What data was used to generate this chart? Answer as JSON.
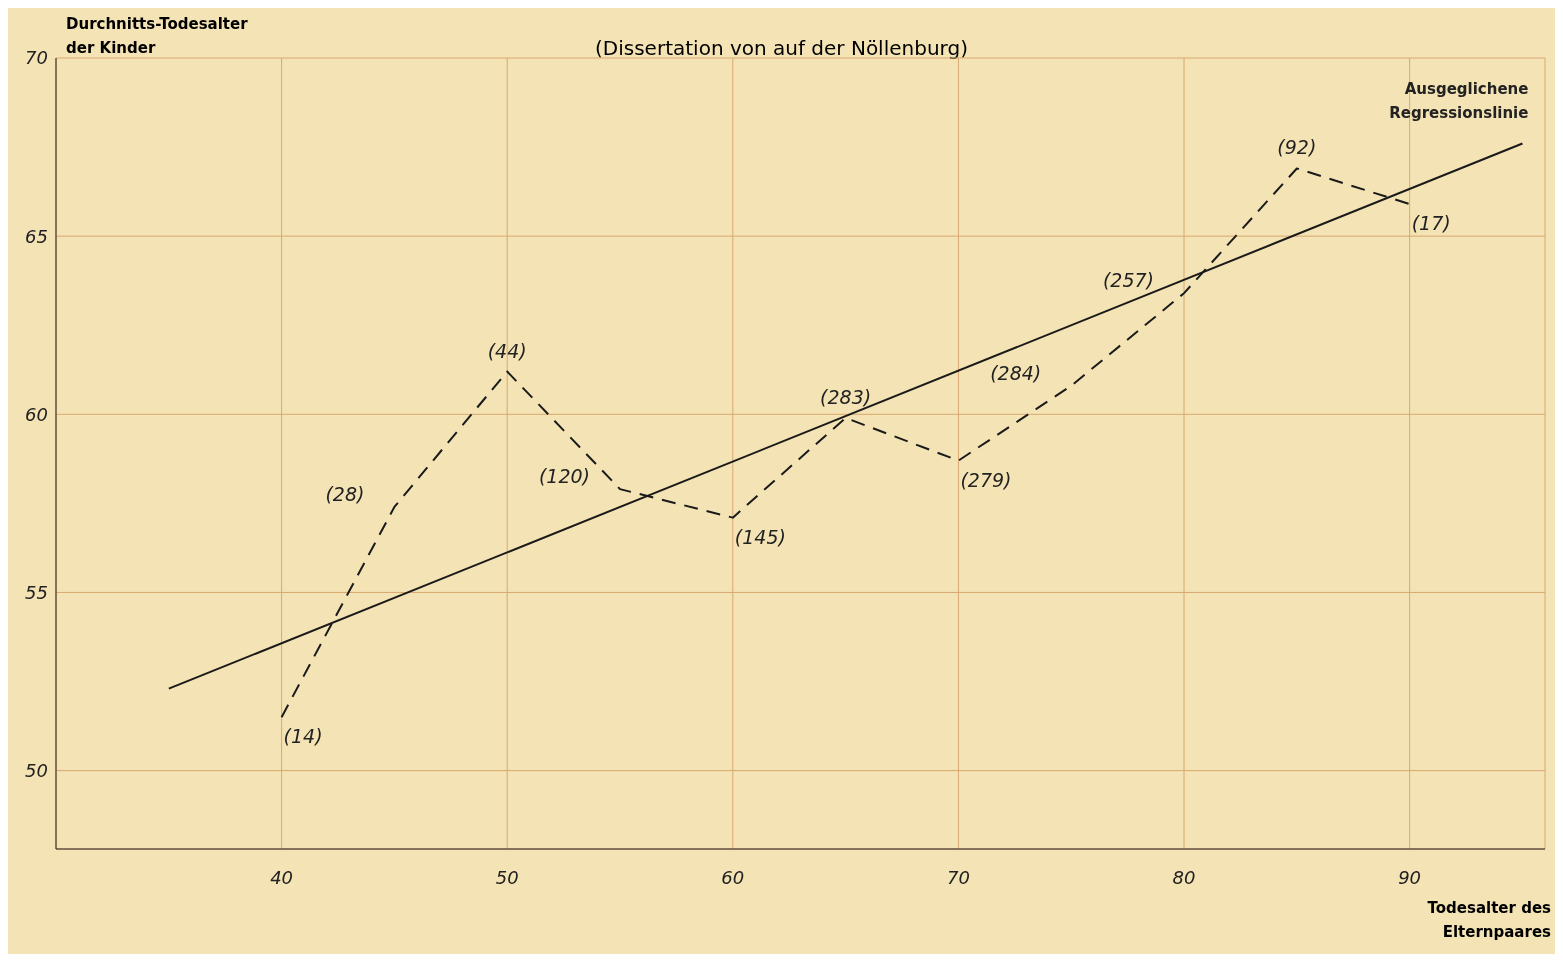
{
  "chart_data": {
    "type": "line",
    "subtitle": "(Dissertation von auf der Nöllenburg)",
    "xlabel": "Todesalter des Elternpaares",
    "ylabel": "Durchnitts-Todesalter der Kinder",
    "xlim": [
      30,
      96
    ],
    "ylim": [
      47.8,
      70
    ],
    "xticks": [
      40,
      50,
      60,
      70,
      80,
      90
    ],
    "yticks": [
      50,
      55,
      60,
      65,
      70
    ],
    "grid": true,
    "marker": "none",
    "series": [
      {
        "color": "#1a1a1a",
        "line_style": "dashed",
        "x": [
          40,
          45,
          50,
          55,
          60,
          65,
          70,
          75,
          80,
          85,
          90
        ],
        "values": [
          51.5,
          57.4,
          61.2,
          57.9,
          57.1,
          59.9,
          58.7,
          60.8,
          63.4,
          66.9,
          65.9
        ]
      },
      {
        "name": "Ausgeglichene Regressionslinie",
        "color": "#1a1a1a",
        "line_style": "solid",
        "x": [
          35,
          95
        ],
        "values": [
          52.3,
          67.6
        ]
      }
    ],
    "annotations": [
      {
        "text": "(14)",
        "x": 40,
        "y": 51.5
      },
      {
        "text": "(28)",
        "x": 45,
        "y": 57.4
      },
      {
        "text": "(44)",
        "x": 50,
        "y": 61.2
      },
      {
        "text": "(120)",
        "x": 55,
        "y": 57.9
      },
      {
        "text": "(145)",
        "x": 60,
        "y": 57.1
      },
      {
        "text": "(283)",
        "x": 65,
        "y": 59.9
      },
      {
        "text": "(279)",
        "x": 70,
        "y": 58.7
      },
      {
        "text": "(284)",
        "x": 75,
        "y": 60.8
      },
      {
        "text": "(257)",
        "x": 80,
        "y": 63.4
      },
      {
        "text": "(92)",
        "x": 85,
        "y": 66.9
      },
      {
        "text": "(17)",
        "x": 90,
        "y": 65.9
      }
    ]
  }
}
